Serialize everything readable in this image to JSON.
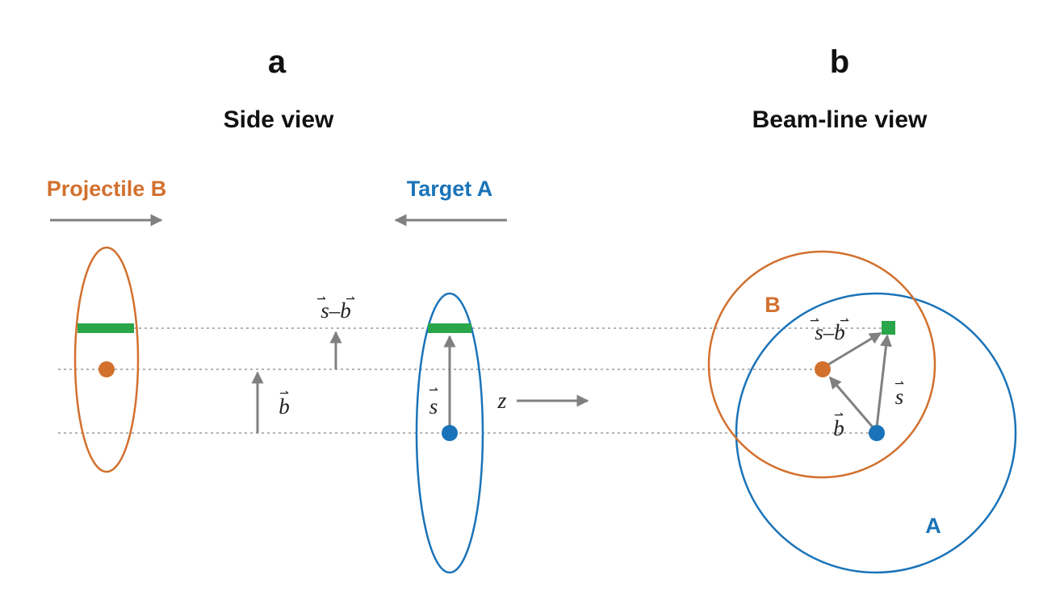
{
  "colors": {
    "projectile": "#d2702e",
    "target": "#1a73b8",
    "overlap": "#2aa64a",
    "arrow": "#808080",
    "guide": "#9a9a9a"
  },
  "panel_a": {
    "letter": "a",
    "title": "Side view",
    "projectile_label": "Projectile B",
    "target_label": "Target A",
    "b_label": "b",
    "s_minus_b_label": "s–b",
    "s_label": "s",
    "z_label": "z"
  },
  "panel_b": {
    "letter": "b",
    "title": "Beam-line view",
    "circle_B_label": "B",
    "circle_A_label": "A",
    "s_minus_b_label": "s–b",
    "s_label": "s",
    "b_label": "b"
  },
  "vector_arrow_glyph": "⇀"
}
